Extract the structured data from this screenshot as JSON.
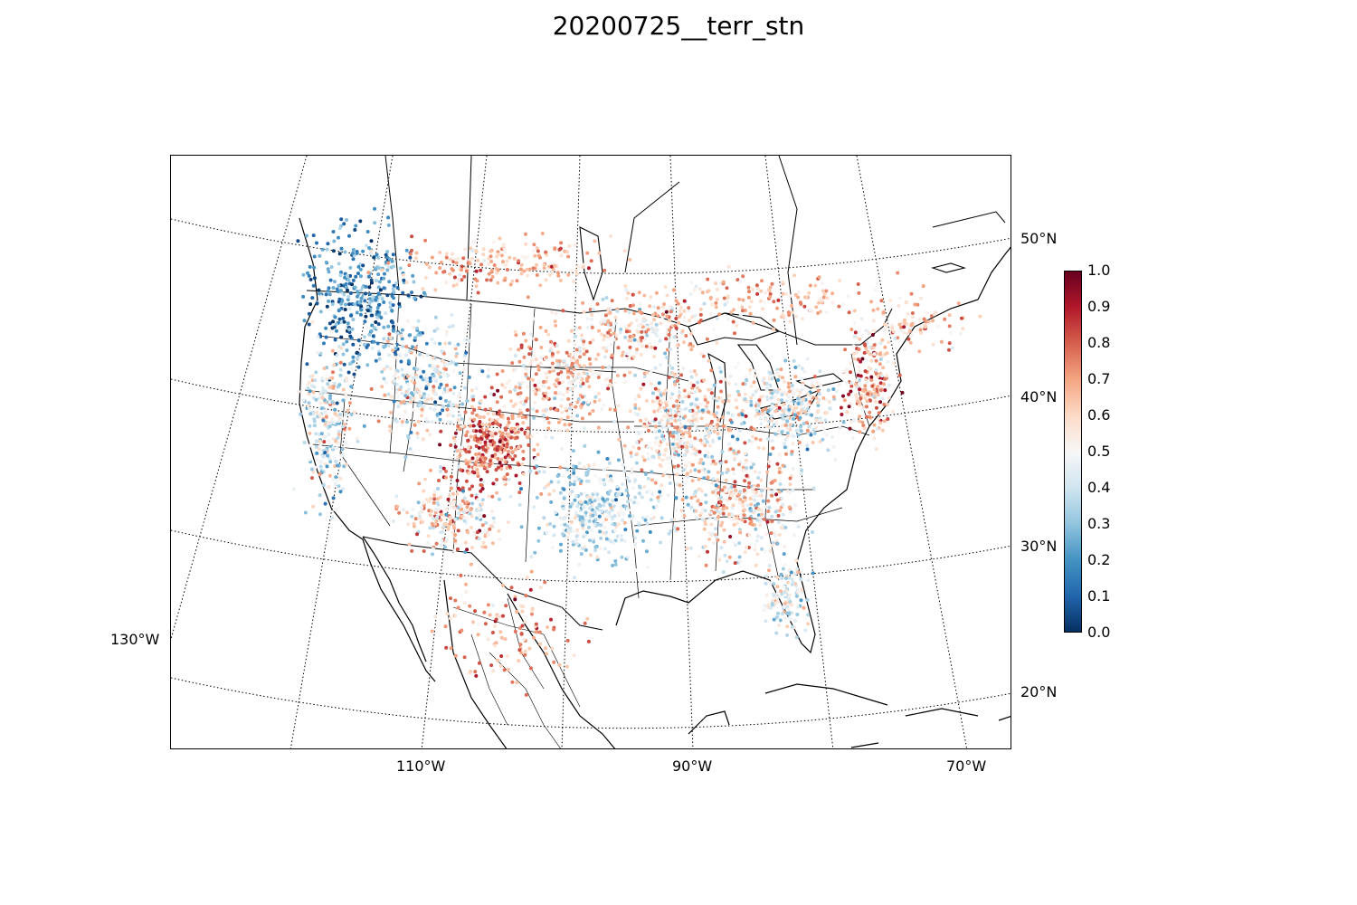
{
  "title": "20200725__terr_stn",
  "map": {
    "projection": "lambert-conformal-conic",
    "lat_labels": [
      "50°N",
      "40°N",
      "30°N",
      "20°N"
    ],
    "lon_labels": [
      "130°W",
      "110°W",
      "90°W",
      "70°W"
    ],
    "graticule_style": "dotted",
    "features": [
      "coastlines",
      "country-borders",
      "state-borders",
      "lakes"
    ]
  },
  "colorbar": {
    "ticks": [
      "0.0",
      "0.1",
      "0.2",
      "0.3",
      "0.4",
      "0.5",
      "0.6",
      "0.7",
      "0.8",
      "0.9",
      "1.0"
    ],
    "colormap": "RdBu_r",
    "colors": [
      "#053061",
      "#2166ac",
      "#4393c3",
      "#92c5de",
      "#d1e5f0",
      "#f7f7f7",
      "#fddbc7",
      "#f4a582",
      "#d6604d",
      "#b2182b",
      "#67001f"
    ]
  },
  "chart_data": {
    "type": "scatter",
    "title": "20200725__terr_stn",
    "value_range": [
      0.0,
      1.0
    ],
    "description_regions": [
      {
        "region": "Pacific Northwest",
        "dominant_values": "0.0-0.3"
      },
      {
        "region": "Colorado Front Range",
        "dominant_values": "0.8-1.0"
      },
      {
        "region": "Texas / Southern Plains",
        "dominant_values": "0.3-0.5"
      },
      {
        "region": "Northeast",
        "dominant_values": "0.6-1.0"
      }
    ]
  }
}
